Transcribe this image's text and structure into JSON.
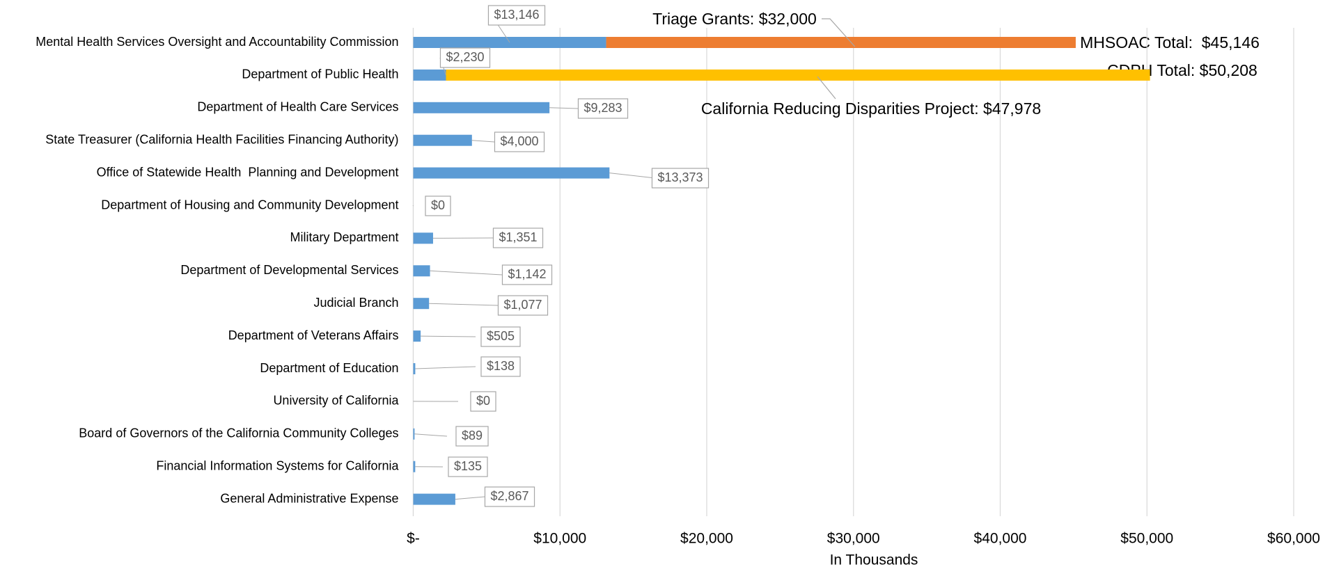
{
  "chart_data": {
    "type": "bar",
    "orientation": "horizontal",
    "stacked": true,
    "categories": [
      "Mental Health Services Oversight and Accountability Commission",
      "Department of Public Health",
      "Department of Health Care Services",
      "State Treasurer (California Health Facilities Financing Authority)",
      "Office of Statewide Health  Planning and Development",
      "Department of Housing and Community Development",
      "Military Department",
      "Department of Developmental Services",
      "Judicial Branch",
      "Department of Veterans Affairs",
      "Department of Education",
      "University of California",
      "Board of Governors of the California Community Colleges",
      "Financial Information Systems for California",
      "General Administrative Expense"
    ],
    "series": [
      {
        "color": "#5b9bd5",
        "values": [
          13146,
          2230,
          9283,
          4000,
          13373,
          0,
          1351,
          1142,
          1077,
          505,
          138,
          0,
          89,
          135,
          2867
        ],
        "value_labels": [
          "$13,146",
          "$2,230",
          "$9,283",
          "$4,000",
          "$13,373",
          "$0",
          "$1,351",
          "$1,142",
          "$1,077",
          "$505",
          "$138",
          "$0",
          "$89",
          "$135",
          "$2,867"
        ]
      },
      {
        "color": "#ed7d31",
        "values": [
          32000,
          null,
          null,
          null,
          null,
          null,
          null,
          null,
          null,
          null,
          null,
          null,
          null,
          null,
          null
        ],
        "value_labels": [
          "Triage Grants: $32,000",
          null,
          null,
          null,
          null,
          null,
          null,
          null,
          null,
          null,
          null,
          null,
          null,
          null,
          null
        ]
      },
      {
        "color": "#ffc000",
        "values": [
          null,
          47978,
          null,
          null,
          null,
          null,
          null,
          null,
          null,
          null,
          null,
          null,
          null,
          null,
          null
        ],
        "value_labels": [
          null,
          "California Reducing Disparities Project: $47,978",
          null,
          null,
          null,
          null,
          null,
          null,
          null,
          null,
          null,
          null,
          null,
          null,
          null
        ]
      }
    ],
    "annotations": [
      "MHSOAC Total:  $45,146",
      "CDPH Total: $50,208"
    ],
    "xlabel": "In Thousands",
    "xlim": [
      0,
      60000
    ],
    "xticks": [
      {
        "value": 0,
        "label": "$-"
      },
      {
        "value": 10000,
        "label": "$10,000"
      },
      {
        "value": 20000,
        "label": "$20,000"
      },
      {
        "value": 30000,
        "label": "$30,000"
      },
      {
        "value": 40000,
        "label": "$40,000"
      },
      {
        "value": 50000,
        "label": "$50,000"
      },
      {
        "value": 60000,
        "label": "$60,000"
      }
    ],
    "grid": true
  }
}
